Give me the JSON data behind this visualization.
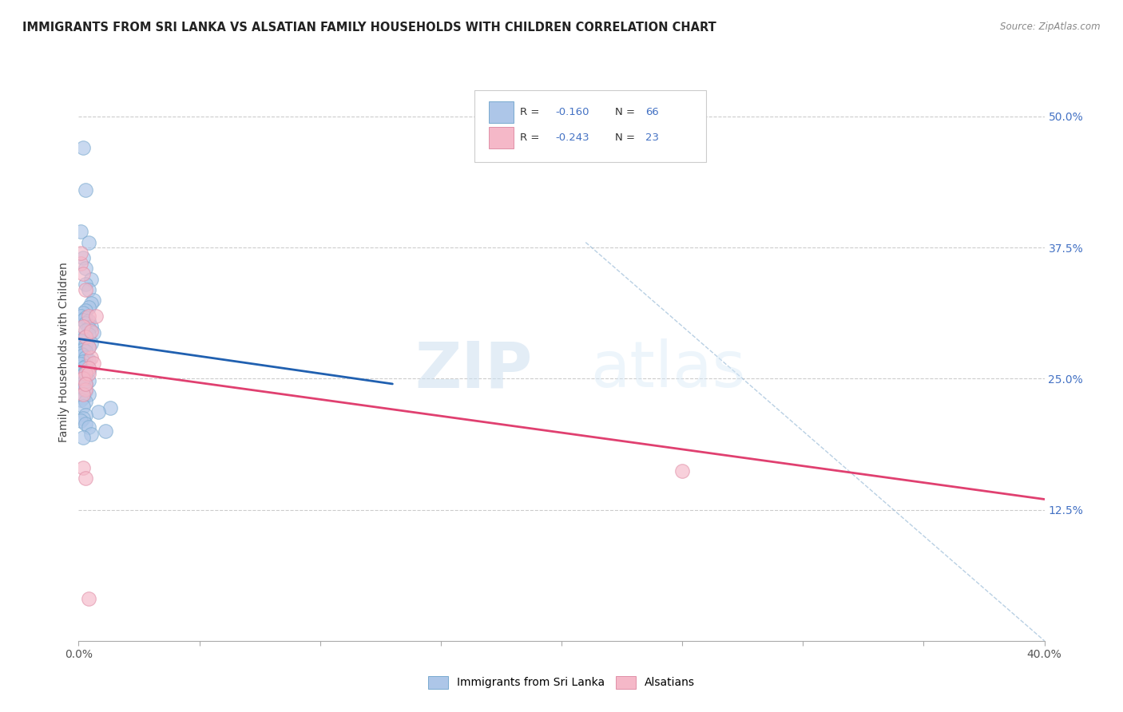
{
  "title": "IMMIGRANTS FROM SRI LANKA VS ALSATIAN FAMILY HOUSEHOLDS WITH CHILDREN CORRELATION CHART",
  "source": "Source: ZipAtlas.com",
  "ylabel": "Family Households with Children",
  "legend_label1": "Immigrants from Sri Lanka",
  "legend_label2": "Alsatians",
  "r1": -0.16,
  "n1": 66,
  "r2": -0.243,
  "n2": 23,
  "color_blue": "#adc6e8",
  "color_pink": "#f5b8c8",
  "line_color_blue": "#2060b0",
  "line_color_pink": "#e04070",
  "xlim": [
    0.0,
    0.4
  ],
  "ylim": [
    0.0,
    0.55
  ],
  "xtick_vals": [
    0.0,
    0.05,
    0.1,
    0.15,
    0.2,
    0.25,
    0.3,
    0.35,
    0.4
  ],
  "yticks_right": [
    0.125,
    0.25,
    0.375,
    0.5
  ],
  "blue_line_x": [
    0.0,
    0.13
  ],
  "blue_line_y": [
    0.288,
    0.245
  ],
  "pink_line_x": [
    0.0,
    0.4
  ],
  "pink_line_y": [
    0.262,
    0.135
  ],
  "diag_line_x": [
    0.21,
    0.4
  ],
  "diag_line_y": [
    0.38,
    0.0
  ],
  "blue_x": [
    0.002,
    0.003,
    0.001,
    0.004,
    0.002,
    0.003,
    0.005,
    0.003,
    0.004,
    0.006,
    0.005,
    0.004,
    0.003,
    0.002,
    0.001,
    0.003,
    0.002,
    0.004,
    0.003,
    0.005,
    0.004,
    0.003,
    0.006,
    0.004,
    0.003,
    0.002,
    0.001,
    0.005,
    0.003,
    0.004,
    0.002,
    0.003,
    0.001,
    0.002,
    0.003,
    0.004,
    0.002,
    0.001,
    0.003,
    0.002,
    0.004,
    0.003,
    0.002,
    0.001,
    0.003,
    0.004,
    0.002,
    0.003,
    0.001,
    0.002,
    0.003,
    0.004,
    0.002,
    0.001,
    0.003,
    0.002,
    0.013,
    0.008,
    0.003,
    0.002,
    0.001,
    0.003,
    0.004,
    0.011,
    0.005,
    0.002
  ],
  "blue_y": [
    0.47,
    0.43,
    0.39,
    0.38,
    0.365,
    0.355,
    0.345,
    0.34,
    0.335,
    0.325,
    0.322,
    0.318,
    0.315,
    0.313,
    0.31,
    0.308,
    0.306,
    0.305,
    0.303,
    0.3,
    0.298,
    0.296,
    0.294,
    0.292,
    0.29,
    0.288,
    0.286,
    0.284,
    0.282,
    0.28,
    0.278,
    0.276,
    0.274,
    0.272,
    0.27,
    0.268,
    0.266,
    0.264,
    0.262,
    0.26,
    0.258,
    0.256,
    0.254,
    0.252,
    0.25,
    0.248,
    0.246,
    0.244,
    0.242,
    0.24,
    0.238,
    0.235,
    0.232,
    0.23,
    0.228,
    0.224,
    0.222,
    0.218,
    0.215,
    0.212,
    0.21,
    0.207,
    0.204,
    0.2,
    0.197,
    0.194
  ],
  "pink_x": [
    0.001,
    0.002,
    0.003,
    0.001,
    0.004,
    0.002,
    0.003,
    0.005,
    0.006,
    0.004,
    0.003,
    0.002,
    0.007,
    0.005,
    0.004,
    0.003,
    0.002,
    0.004,
    0.003,
    0.002,
    0.25,
    0.003,
    0.004
  ],
  "pink_y": [
    0.36,
    0.35,
    0.335,
    0.37,
    0.31,
    0.3,
    0.29,
    0.27,
    0.265,
    0.26,
    0.255,
    0.25,
    0.31,
    0.295,
    0.28,
    0.24,
    0.235,
    0.255,
    0.245,
    0.165,
    0.162,
    0.155,
    0.04
  ]
}
